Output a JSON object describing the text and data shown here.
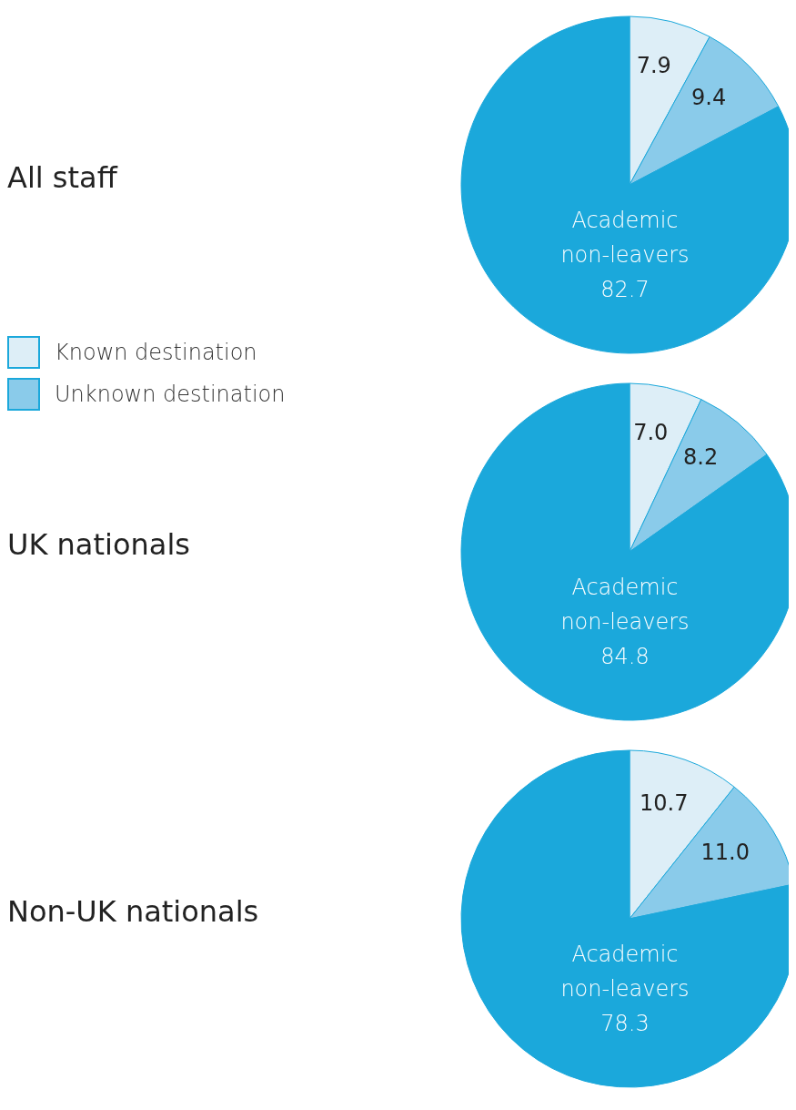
{
  "chart_data": [
    {
      "type": "pie",
      "title": "All staff",
      "categories": [
        "Known destination",
        "Unknown destination",
        "Academic non-leavers"
      ],
      "values": [
        7.9,
        9.4,
        82.7
      ],
      "value_labels": [
        "7.9",
        "9.4",
        "82.7"
      ],
      "colors": [
        "#ddeef7",
        "#8acbea",
        "#1ba8db"
      ],
      "legend": "bottom left"
    },
    {
      "type": "pie",
      "title": "UK nationals",
      "categories": [
        null,
        null,
        "Academic non-leavers"
      ],
      "values": [
        7.0,
        8.2,
        84.8
      ],
      "value_labels": [
        "7.0",
        "8.2",
        "84.8"
      ],
      "colors": [
        "#ddeef7",
        "#8acbea",
        "#1ba8db"
      ]
    },
    {
      "type": "pie",
      "title": "Non-UK nationals",
      "categories": [
        null,
        null,
        "Academic non-leavers"
      ],
      "values": [
        10.7,
        11.0,
        78.3
      ],
      "value_labels": [
        "10.7",
        "11.0",
        "78.3"
      ],
      "colors": [
        "#ddeef7",
        "#8acbea",
        "#1ba8db"
      ]
    }
  ]
}
